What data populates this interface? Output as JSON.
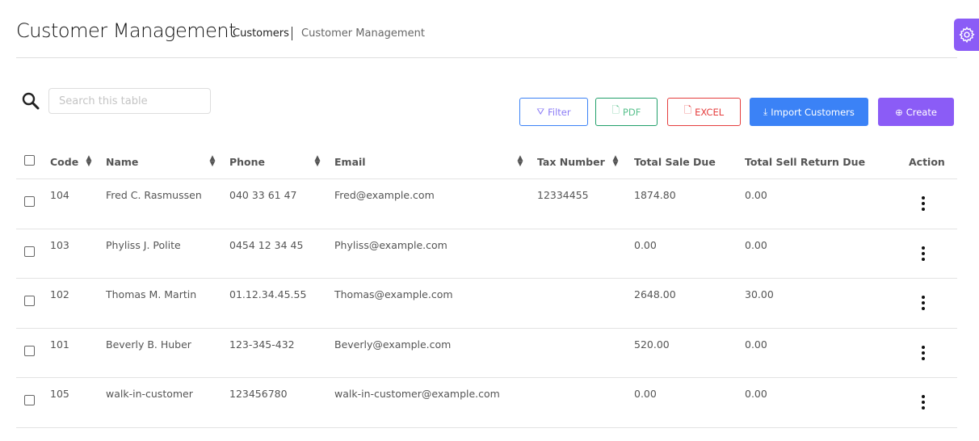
{
  "header": {
    "title": "Customer Management",
    "breadcrumb": [
      "Customers",
      "Customer Management"
    ]
  },
  "search": {
    "placeholder": "Search this table",
    "value": ""
  },
  "toolbar": {
    "filter": "Filter",
    "pdf": "PDF",
    "excel": "EXCEL",
    "import": "Import Customers",
    "create": "Create"
  },
  "colors": {
    "primary": "#3b82f6",
    "accent": "#8b5cf6",
    "success": "#22a06b",
    "danger": "#e53e3e"
  },
  "table": {
    "columns": [
      "Code",
      "Name",
      "Phone",
      "Email",
      "Tax Number",
      "Total Sale Due",
      "Total Sell Return Due",
      "Action"
    ],
    "rows": [
      {
        "code": "104",
        "name": "Fred C. Rasmussen",
        "phone": "040 33 61 47",
        "email": "Fred@example.com",
        "tax": "12334455",
        "sale_due": "1874.80",
        "return_due": "0.00"
      },
      {
        "code": "103",
        "name": "Phyliss J. Polite",
        "phone": "0454 12 34 45",
        "email": "Phyliss@example.com",
        "tax": "",
        "sale_due": "0.00",
        "return_due": "0.00"
      },
      {
        "code": "102",
        "name": "Thomas M. Martin",
        "phone": "01.12.34.45.55",
        "email": "Thomas@example.com",
        "tax": "",
        "sale_due": "2648.00",
        "return_due": "30.00"
      },
      {
        "code": "101",
        "name": "Beverly B. Huber",
        "phone": "123-345-432",
        "email": "Beverly@example.com",
        "tax": "",
        "sale_due": "520.00",
        "return_due": "0.00"
      },
      {
        "code": "105",
        "name": "walk-in-customer",
        "phone": "123456780",
        "email": "walk-in-customer@example.com",
        "tax": "",
        "sale_due": "0.00",
        "return_due": "0.00"
      }
    ]
  }
}
